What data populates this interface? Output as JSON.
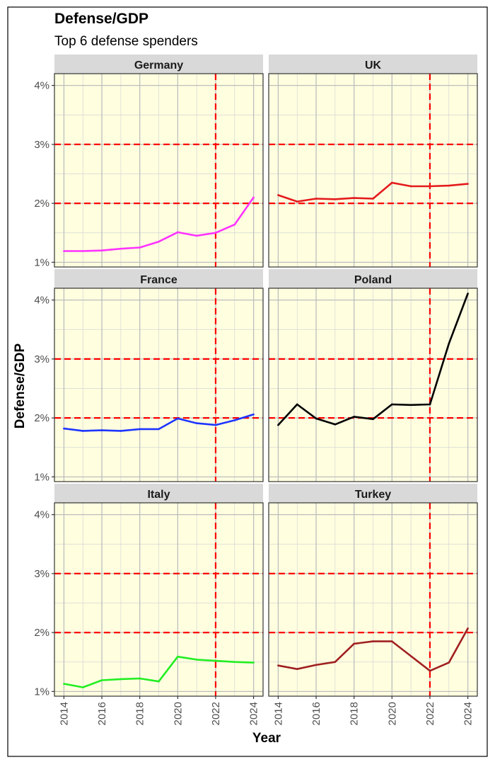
{
  "chart_data": {
    "type": "line",
    "title": "Defense/GDP",
    "subtitle": "Top 6 defense spenders",
    "xlabel": "Year",
    "ylabel": "Defense/GDP",
    "x": [
      2014,
      2015,
      2016,
      2017,
      2018,
      2019,
      2020,
      2021,
      2022,
      2023,
      2024
    ],
    "x_ticks": [
      2014,
      2016,
      2018,
      2020,
      2022,
      2024
    ],
    "x_tick_labels": [
      "2014",
      "2016",
      "2018",
      "2020",
      "2022",
      "2024"
    ],
    "xlim": [
      2013.5,
      2024.5
    ],
    "y_ticks": [
      1,
      2,
      3,
      4
    ],
    "y_tick_labels": [
      "1%",
      "2%",
      "3%",
      "4%"
    ],
    "ylim": [
      0.92,
      4.2
    ],
    "grid": true,
    "panel_background": "#ffffe0",
    "strip_background": "#d9d9d9",
    "reference_lines": {
      "horizontal": [
        2,
        3
      ],
      "vertical": [
        2022
      ],
      "color": "#ff0000",
      "style": "dashed"
    },
    "facets": [
      {
        "label": "Germany",
        "color": "#ff33ff",
        "values": [
          1.19,
          1.19,
          1.2,
          1.23,
          1.25,
          1.35,
          1.51,
          1.45,
          1.5,
          1.64,
          2.1
        ]
      },
      {
        "label": "UK",
        "color": "#e41a1c",
        "values": [
          2.14,
          2.03,
          2.08,
          2.07,
          2.09,
          2.08,
          2.35,
          2.29,
          2.29,
          2.3,
          2.33
        ]
      },
      {
        "label": "France",
        "color": "#1f35ff",
        "values": [
          1.82,
          1.78,
          1.79,
          1.78,
          1.81,
          1.81,
          1.99,
          1.91,
          1.88,
          1.96,
          2.06
        ]
      },
      {
        "label": "Poland",
        "color": "#000000",
        "values": [
          1.88,
          2.23,
          1.99,
          1.89,
          2.02,
          1.98,
          2.23,
          2.22,
          2.23,
          3.26,
          4.11
        ]
      },
      {
        "label": "Italy",
        "color": "#22ee22",
        "values": [
          1.13,
          1.07,
          1.19,
          1.21,
          1.22,
          1.17,
          1.59,
          1.54,
          1.52,
          1.5,
          1.49
        ]
      },
      {
        "label": "Turkey",
        "color": "#a02020",
        "values": [
          1.44,
          1.38,
          1.45,
          1.5,
          1.81,
          1.85,
          1.85,
          1.6,
          1.35,
          1.49,
          2.07
        ]
      }
    ]
  }
}
